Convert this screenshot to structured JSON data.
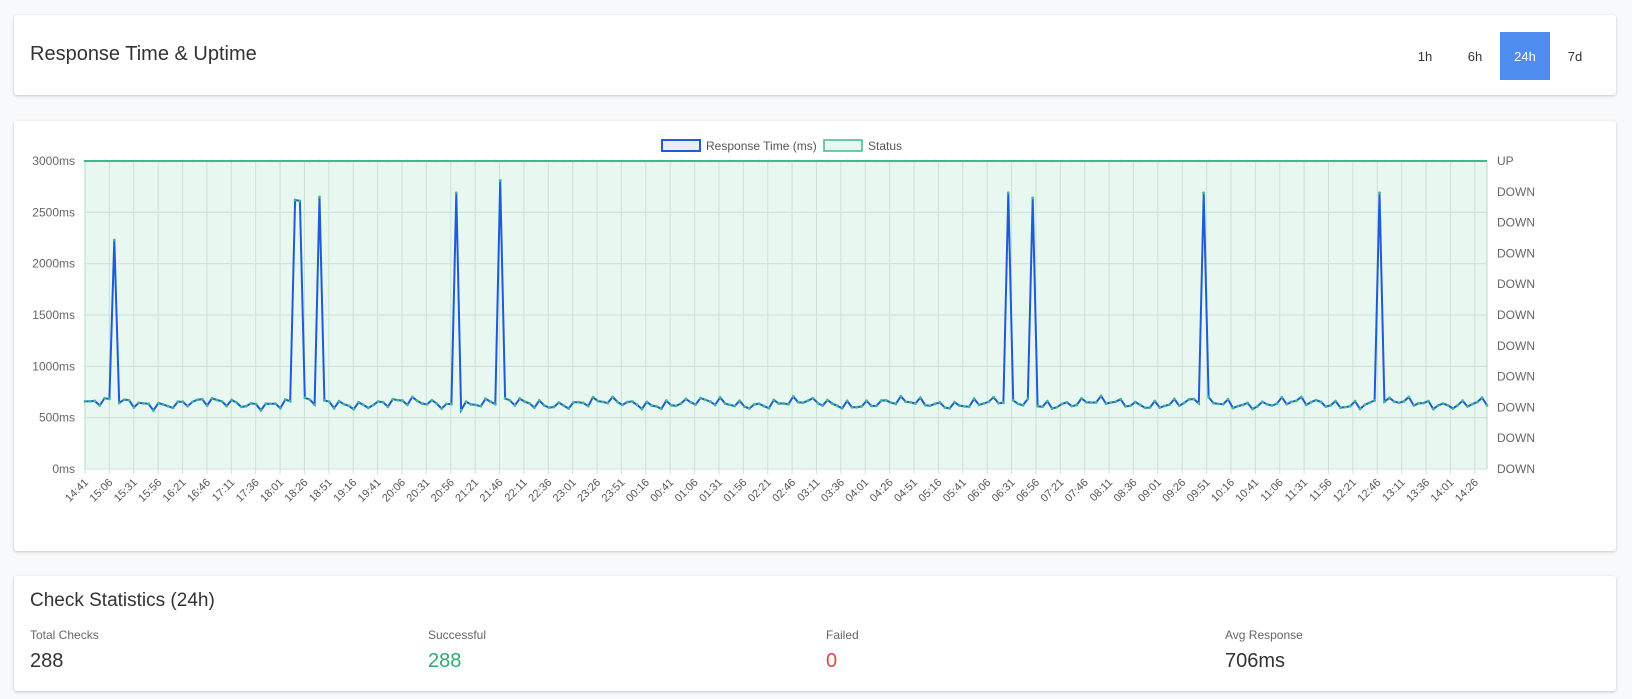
{
  "header": {
    "title": "Response Time & Uptime",
    "ranges": [
      {
        "label": "1h",
        "active": false
      },
      {
        "label": "6h",
        "active": false
      },
      {
        "label": "24h",
        "active": true
      },
      {
        "label": "7d",
        "active": false
      }
    ]
  },
  "colors": {
    "response_line": "#1f5bd6",
    "status_line": "#3dbb8c",
    "status_fill": "#e8f7f0",
    "accent": "#4e8cef",
    "success": "#2eaa6e",
    "failed": "#e04848"
  },
  "chart_data": {
    "type": "line",
    "legend": [
      "Response Time (ms)",
      "Status"
    ],
    "legend_position": "top",
    "grid": true,
    "y_left": {
      "ticks": [
        "0ms",
        "500ms",
        "1000ms",
        "1500ms",
        "2000ms",
        "2500ms",
        "3000ms"
      ],
      "range": [
        0,
        3000
      ]
    },
    "y_right": {
      "ticks": [
        "DOWN",
        "DOWN",
        "DOWN",
        "DOWN",
        "DOWN",
        "DOWN",
        "DOWN",
        "DOWN",
        "DOWN",
        "DOWN",
        "UP"
      ]
    },
    "x_ticks": [
      "14:41",
      "15:06",
      "15:31",
      "15:56",
      "16:21",
      "16:46",
      "17:11",
      "17:36",
      "18:01",
      "18:26",
      "18:51",
      "19:16",
      "19:41",
      "20:06",
      "20:31",
      "20:56",
      "21:21",
      "21:46",
      "22:11",
      "22:36",
      "23:01",
      "23:26",
      "23:51",
      "00:16",
      "00:41",
      "01:06",
      "01:31",
      "01:56",
      "02:21",
      "02:46",
      "03:11",
      "03:36",
      "04:01",
      "04:26",
      "04:51",
      "05:16",
      "05:41",
      "06:06",
      "06:31",
      "06:56",
      "07:21",
      "07:46",
      "08:11",
      "08:36",
      "09:01",
      "09:26",
      "09:51",
      "10:16",
      "10:41",
      "11:06",
      "11:31",
      "11:56",
      "12:21",
      "12:46",
      "13:11",
      "13:36",
      "14:01",
      "14:26"
    ],
    "series": [
      {
        "name": "Response Time (ms)",
        "baseline_ms": 640,
        "points_count": 288,
        "spikes": [
          {
            "time": "15:11",
            "value": 2230
          },
          {
            "time": "18:16",
            "value": 2620
          },
          {
            "time": "18:21",
            "value": 2610
          },
          {
            "time": "18:41",
            "value": 2650
          },
          {
            "time": "21:01",
            "value": 2690
          },
          {
            "time": "21:46",
            "value": 2810
          },
          {
            "time": "06:26",
            "value": 2690
          },
          {
            "time": "06:51",
            "value": 2640
          },
          {
            "time": "09:46",
            "value": 2690
          },
          {
            "time": "12:46",
            "value": 2690
          }
        ]
      },
      {
        "name": "Status",
        "value": "UP",
        "points_count": 288
      }
    ]
  },
  "stats": {
    "title": "Check Statistics (24h)",
    "items": [
      {
        "label": "Total Checks",
        "value": "288"
      },
      {
        "label": "Successful",
        "value": "288"
      },
      {
        "label": "Failed",
        "value": "0"
      },
      {
        "label": "Avg Response",
        "value": "706ms"
      }
    ]
  }
}
